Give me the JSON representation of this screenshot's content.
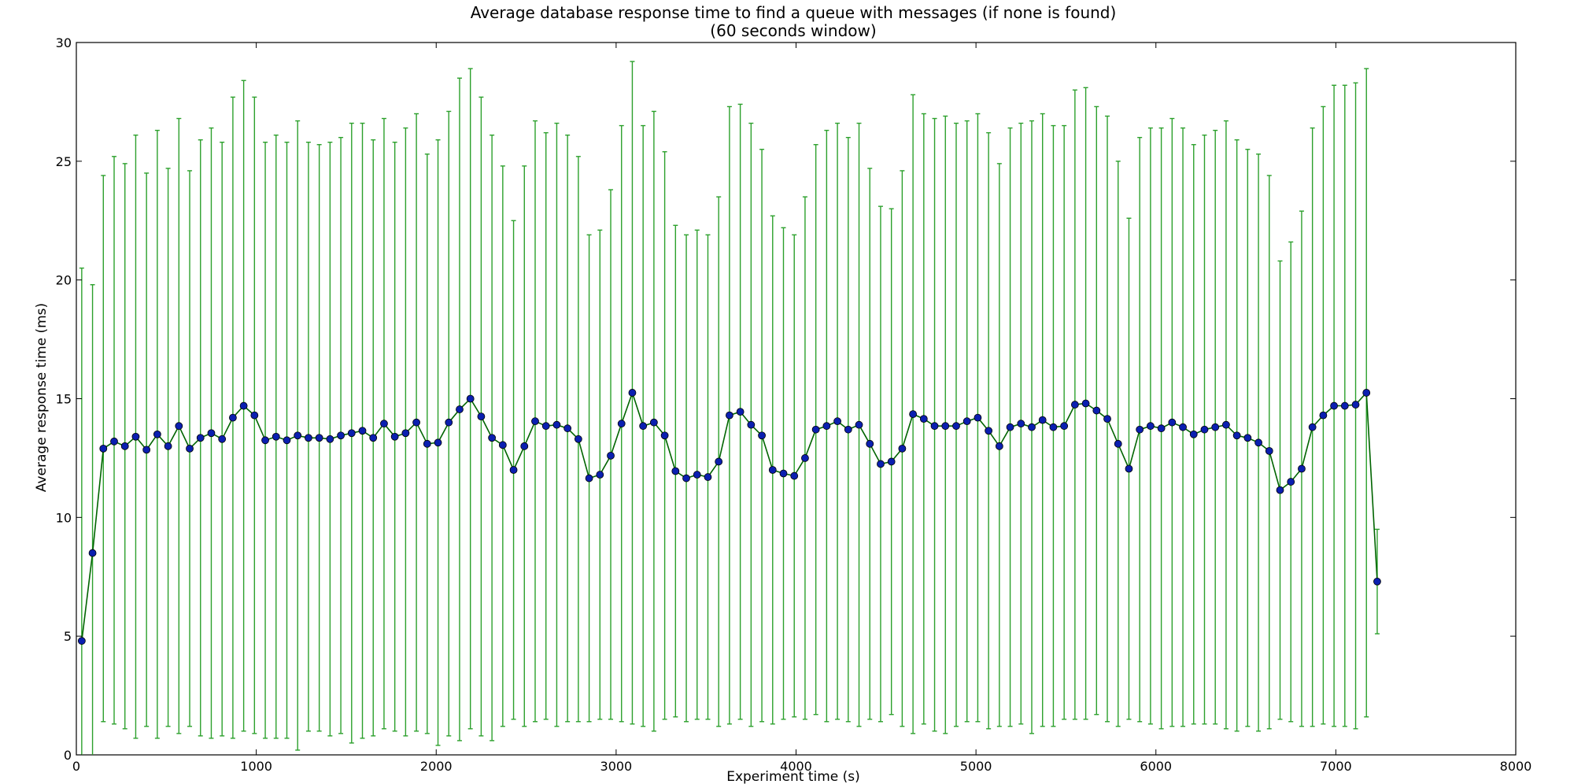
{
  "chart_data": {
    "type": "line",
    "title": "Average database response time to find a queue with messages (if none is found)",
    "subtitle": "(60 seconds window)",
    "xlabel": "Experiment time (s)",
    "ylabel": "Average response time (ms)",
    "xlim": [
      0,
      8000
    ],
    "ylim": [
      0,
      30
    ],
    "xticks": [
      0,
      1000,
      2000,
      3000,
      4000,
      5000,
      6000,
      7000,
      8000
    ],
    "yticks": [
      0,
      5,
      10,
      15,
      20,
      25,
      30
    ],
    "xtick_labels": [
      "0",
      "1000",
      "2000",
      "3000",
      "4000",
      "5000",
      "6000",
      "7000",
      "8000"
    ],
    "ytick_labels": [
      "0",
      "5",
      "10",
      "15",
      "20",
      "25",
      "30"
    ],
    "grid": false,
    "legend": "none",
    "colors": {
      "line": "#006400",
      "marker": "#0b1fb0",
      "errorbar": "#2ca02c"
    },
    "series": [
      {
        "x": [
          30,
          90,
          150,
          210,
          270,
          330,
          390,
          450,
          510,
          570,
          630,
          690,
          750,
          810,
          870,
          930,
          990,
          1050,
          1110,
          1170,
          1230,
          1290,
          1350,
          1410,
          1470,
          1530,
          1590,
          1650,
          1710,
          1770,
          1830,
          1890,
          1950,
          2010,
          2070,
          2130,
          2190,
          2250,
          2310,
          2370,
          2430,
          2490,
          2550,
          2610,
          2670,
          2730,
          2790,
          2850,
          2910,
          2970,
          3030,
          3090,
          3150,
          3210,
          3270,
          3330,
          3390,
          3450,
          3510,
          3570,
          3630,
          3690,
          3750,
          3810,
          3870,
          3930,
          3990,
          4050,
          4110,
          4170,
          4230,
          4290,
          4350,
          4410,
          4470,
          4530,
          4590,
          4650,
          4710,
          4770,
          4830,
          4890,
          4950,
          5010,
          5070,
          5130,
          5190,
          5250,
          5310,
          5370,
          5430,
          5490,
          5550,
          5610,
          5670,
          5730,
          5790,
          5850,
          5910,
          5970,
          6030,
          6090,
          6150,
          6210,
          6270,
          6330,
          6390,
          6450,
          6510,
          6570,
          6630,
          6690,
          6750,
          6810,
          6870,
          6930,
          6990,
          7050,
          7110,
          7170,
          7230
        ],
        "values": [
          4.8,
          8.5,
          12.9,
          13.2,
          13.0,
          13.4,
          12.85,
          13.5,
          13.0,
          13.85,
          12.9,
          13.35,
          13.55,
          13.3,
          14.2,
          14.7,
          14.3,
          13.25,
          13.4,
          13.25,
          13.45,
          13.35,
          13.35,
          13.3,
          13.45,
          13.55,
          13.65,
          13.35,
          13.95,
          13.4,
          13.55,
          14.0,
          13.1,
          13.15,
          14.0,
          14.55,
          15.0,
          14.25,
          13.35,
          13.05,
          12.0,
          13.0,
          14.05,
          13.85,
          13.9,
          13.75,
          13.3,
          11.65,
          11.8,
          12.6,
          13.95,
          15.25,
          13.85,
          14.0,
          13.45,
          11.95,
          11.65,
          11.8,
          11.7,
          12.35,
          14.3,
          14.45,
          13.9,
          13.45,
          12.0,
          11.85,
          11.75,
          12.5,
          13.7,
          13.85,
          14.05,
          13.7,
          13.9,
          13.1,
          12.25,
          12.35,
          12.9,
          14.35,
          14.15,
          13.85,
          13.85,
          13.85,
          14.05,
          14.2,
          13.65,
          13.0,
          13.8,
          13.95,
          13.8,
          14.1,
          13.8,
          13.85,
          14.75,
          14.8,
          14.5,
          14.15,
          13.1,
          12.05,
          13.7,
          13.85,
          13.75,
          14.0,
          13.8,
          13.5,
          13.7,
          13.8,
          13.9,
          13.45,
          13.35,
          13.15,
          12.8,
          11.15,
          11.5,
          12.05,
          13.8,
          14.3,
          14.7,
          14.7,
          14.75,
          15.25,
          7.3
        ],
        "err_upper": [
          20.5,
          19.8,
          24.4,
          25.2,
          24.9,
          26.1,
          24.5,
          26.3,
          24.7,
          26.8,
          24.6,
          25.9,
          26.4,
          25.8,
          27.7,
          28.4,
          27.7,
          25.8,
          26.1,
          25.8,
          26.7,
          25.8,
          25.7,
          25.8,
          26.0,
          26.6,
          26.6,
          25.9,
          26.8,
          25.8,
          26.4,
          27.0,
          25.3,
          25.9,
          27.1,
          28.5,
          28.9,
          27.7,
          26.1,
          24.8,
          22.5,
          24.8,
          26.7,
          26.2,
          26.6,
          26.1,
          25.2,
          21.9,
          22.1,
          23.8,
          26.5,
          29.2,
          26.5,
          27.1,
          25.4,
          22.3,
          21.9,
          22.1,
          21.9,
          23.5,
          27.3,
          27.4,
          26.6,
          25.5,
          22.7,
          22.2,
          21.9,
          23.5,
          25.7,
          26.3,
          26.6,
          26.0,
          26.6,
          24.7,
          23.1,
          23.0,
          24.6,
          27.8,
          27.0,
          26.8,
          26.9,
          26.6,
          26.7,
          27.0,
          26.2,
          24.9,
          26.4,
          26.6,
          26.7,
          27.0,
          26.5,
          26.5,
          28.0,
          28.1,
          27.3,
          26.9,
          25.0,
          22.6,
          26.0,
          26.4,
          26.4,
          26.8,
          26.4,
          25.7,
          26.1,
          26.3,
          26.7,
          25.9,
          25.5,
          25.3,
          24.4,
          20.8,
          21.6,
          22.9,
          26.4,
          27.3,
          28.2,
          28.2,
          28.3,
          28.9,
          9.5
        ],
        "err_lower": [
          -0.2,
          -0.1,
          1.4,
          1.3,
          1.1,
          0.7,
          1.2,
          0.7,
          1.2,
          0.9,
          1.2,
          0.8,
          0.7,
          0.8,
          0.7,
          1.0,
          0.9,
          0.7,
          0.7,
          0.7,
          0.2,
          1.0,
          1.0,
          0.8,
          0.9,
          0.5,
          0.7,
          0.8,
          1.1,
          1.0,
          0.8,
          1.0,
          0.9,
          0.4,
          0.8,
          0.6,
          1.1,
          0.8,
          0.6,
          1.2,
          1.5,
          1.2,
          1.4,
          1.5,
          1.2,
          1.4,
          1.4,
          1.4,
          1.5,
          1.5,
          1.4,
          1.3,
          1.2,
          1.0,
          1.5,
          1.6,
          1.4,
          1.5,
          1.5,
          1.2,
          1.3,
          1.5,
          1.2,
          1.4,
          1.3,
          1.5,
          1.6,
          1.5,
          1.7,
          1.4,
          1.5,
          1.4,
          1.2,
          1.5,
          1.4,
          1.7,
          1.2,
          0.9,
          1.3,
          1.0,
          0.9,
          1.2,
          1.4,
          1.4,
          1.1,
          1.2,
          1.2,
          1.3,
          0.9,
          1.2,
          1.2,
          1.5,
          1.5,
          1.5,
          1.7,
          1.4,
          1.2,
          1.5,
          1.4,
          1.3,
          1.1,
          1.2,
          1.2,
          1.3,
          1.3,
          1.3,
          1.1,
          1.0,
          1.2,
          1.0,
          1.1,
          1.5,
          1.4,
          1.2,
          1.2,
          1.3,
          1.2,
          1.2,
          1.1,
          1.6,
          5.1
        ]
      }
    ]
  }
}
